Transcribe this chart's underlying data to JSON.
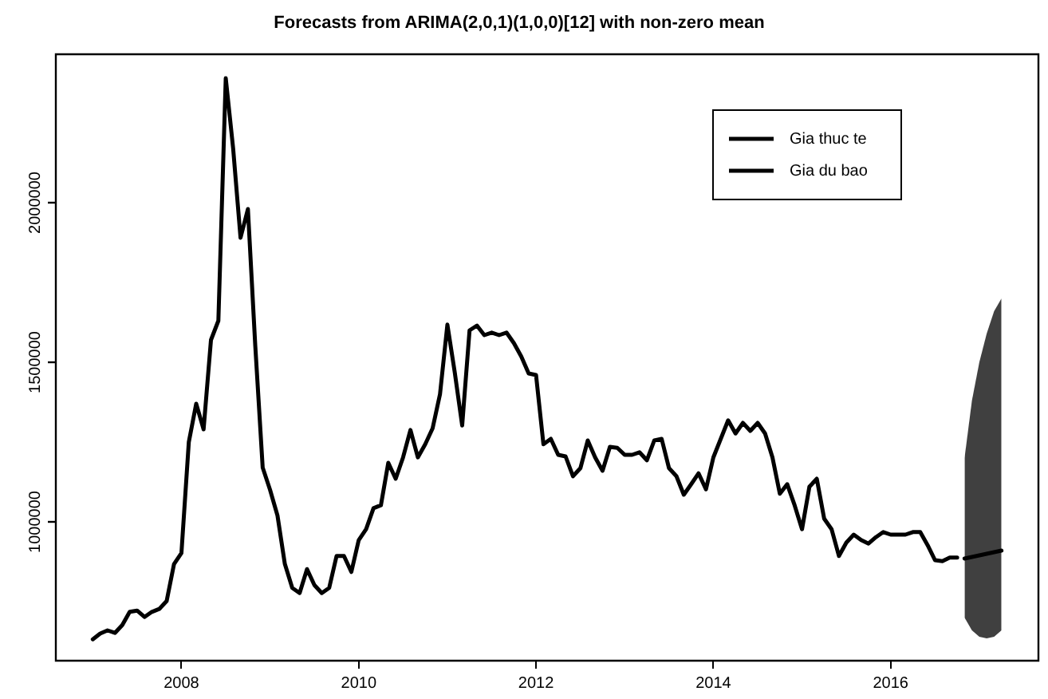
{
  "chart_data": {
    "type": "line",
    "title": "Forecasts from ARIMA(2,0,1)(1,0,0)[12] with non-zero mean",
    "xlim": [
      "2006-08",
      "2017-09"
    ],
    "xticks": [
      "2008",
      "2010",
      "2012",
      "2014",
      "2016"
    ],
    "ylim": [
      565000,
      2465000
    ],
    "yticks": [
      1000000,
      1500000,
      2000000
    ],
    "grid": false,
    "legend": "top right",
    "marker": "none",
    "line_style": "solid",
    "series": [
      {
        "name": "Gia thuc te",
        "color": "#000000",
        "type": "line",
        "x": [
          "2007-01",
          "2007-02",
          "2007-03",
          "2007-04",
          "2007-05",
          "2007-06",
          "2007-07",
          "2007-08",
          "2007-09",
          "2007-10",
          "2007-11",
          "2007-12",
          "2008-01",
          "2008-02",
          "2008-03",
          "2008-04",
          "2008-05",
          "2008-06",
          "2008-07",
          "2008-08",
          "2008-09",
          "2008-10",
          "2008-11",
          "2008-12",
          "2009-01",
          "2009-02",
          "2009-03",
          "2009-04",
          "2009-05",
          "2009-06",
          "2009-07",
          "2009-08",
          "2009-09",
          "2009-10",
          "2009-11",
          "2009-12",
          "2010-01",
          "2010-02",
          "2010-03",
          "2010-04",
          "2010-05",
          "2010-06",
          "2010-07",
          "2010-08",
          "2010-09",
          "2010-10",
          "2010-11",
          "2010-12",
          "2011-01",
          "2011-02",
          "2011-03",
          "2011-04",
          "2011-05",
          "2011-06",
          "2011-07",
          "2011-08",
          "2011-09",
          "2011-10",
          "2011-11",
          "2011-12",
          "2012-01",
          "2012-02",
          "2012-03",
          "2012-04",
          "2012-05",
          "2012-06",
          "2012-07",
          "2012-08",
          "2012-09",
          "2012-10",
          "2012-11",
          "2012-12",
          "2013-01",
          "2013-02",
          "2013-03",
          "2013-04",
          "2013-05",
          "2013-06",
          "2013-07",
          "2013-08",
          "2013-09",
          "2013-10",
          "2013-11",
          "2013-12",
          "2014-01",
          "2014-02",
          "2014-03",
          "2014-04",
          "2014-05",
          "2014-06",
          "2014-07",
          "2014-08",
          "2014-09",
          "2014-10",
          "2014-11",
          "2014-12",
          "2015-01",
          "2015-02",
          "2015-03",
          "2015-04",
          "2015-05",
          "2015-06",
          "2015-07",
          "2015-08",
          "2015-09",
          "2015-10",
          "2015-11",
          "2015-12",
          "2016-01",
          "2016-02",
          "2016-03",
          "2016-04",
          "2016-05",
          "2016-06",
          "2016-07",
          "2016-08",
          "2016-09",
          "2016-10"
        ],
        "values": [
          632000,
          650000,
          660000,
          652000,
          677000,
          718000,
          722000,
          702000,
          718000,
          727000,
          752000,
          868000,
          902000,
          1250000,
          1370000,
          1290000,
          1570000,
          1630000,
          2390000,
          2170000,
          1890000,
          1980000,
          1550000,
          1170000,
          1100000,
          1020000,
          868000,
          793000,
          777000,
          852000,
          802000,
          777000,
          793000,
          893000,
          893000,
          843000,
          943000,
          977000,
          1043000,
          1052000,
          1185000,
          1135000,
          1202000,
          1288000,
          1202000,
          1243000,
          1293000,
          1400000,
          1618000,
          1468000,
          1302000,
          1600000,
          1615000,
          1585000,
          1593000,
          1585000,
          1593000,
          1560000,
          1518000,
          1465000,
          1460000,
          1243000,
          1260000,
          1210000,
          1205000,
          1143000,
          1168000,
          1255000,
          1202000,
          1160000,
          1235000,
          1232000,
          1210000,
          1210000,
          1218000,
          1193000,
          1255000,
          1260000,
          1168000,
          1143000,
          1085000,
          1118000,
          1152000,
          1102000,
          1202000,
          1260000,
          1318000,
          1277000,
          1310000,
          1285000,
          1310000,
          1277000,
          1202000,
          1088000,
          1118000,
          1052000,
          977000,
          1110000,
          1135000,
          1010000,
          977000,
          893000,
          935000,
          960000,
          943000,
          932000,
          952000,
          968000,
          960000,
          960000,
          960000,
          968000,
          968000,
          927000,
          880000,
          877000,
          888000,
          888000
        ]
      },
      {
        "name": "Gia du bao",
        "color": "#000000",
        "type": "line",
        "x": [
          "2016-11",
          "2016-12",
          "2017-01",
          "2017-02",
          "2017-03",
          "2017-04"
        ],
        "values": [
          885000,
          890000,
          895000,
          900000,
          905000,
          910000
        ],
        "lower": [
          700000,
          660000,
          640000,
          635000,
          640000,
          660000
        ],
        "upper": [
          1200000,
          1380000,
          1500000,
          1590000,
          1660000,
          1700000
        ]
      }
    ]
  }
}
